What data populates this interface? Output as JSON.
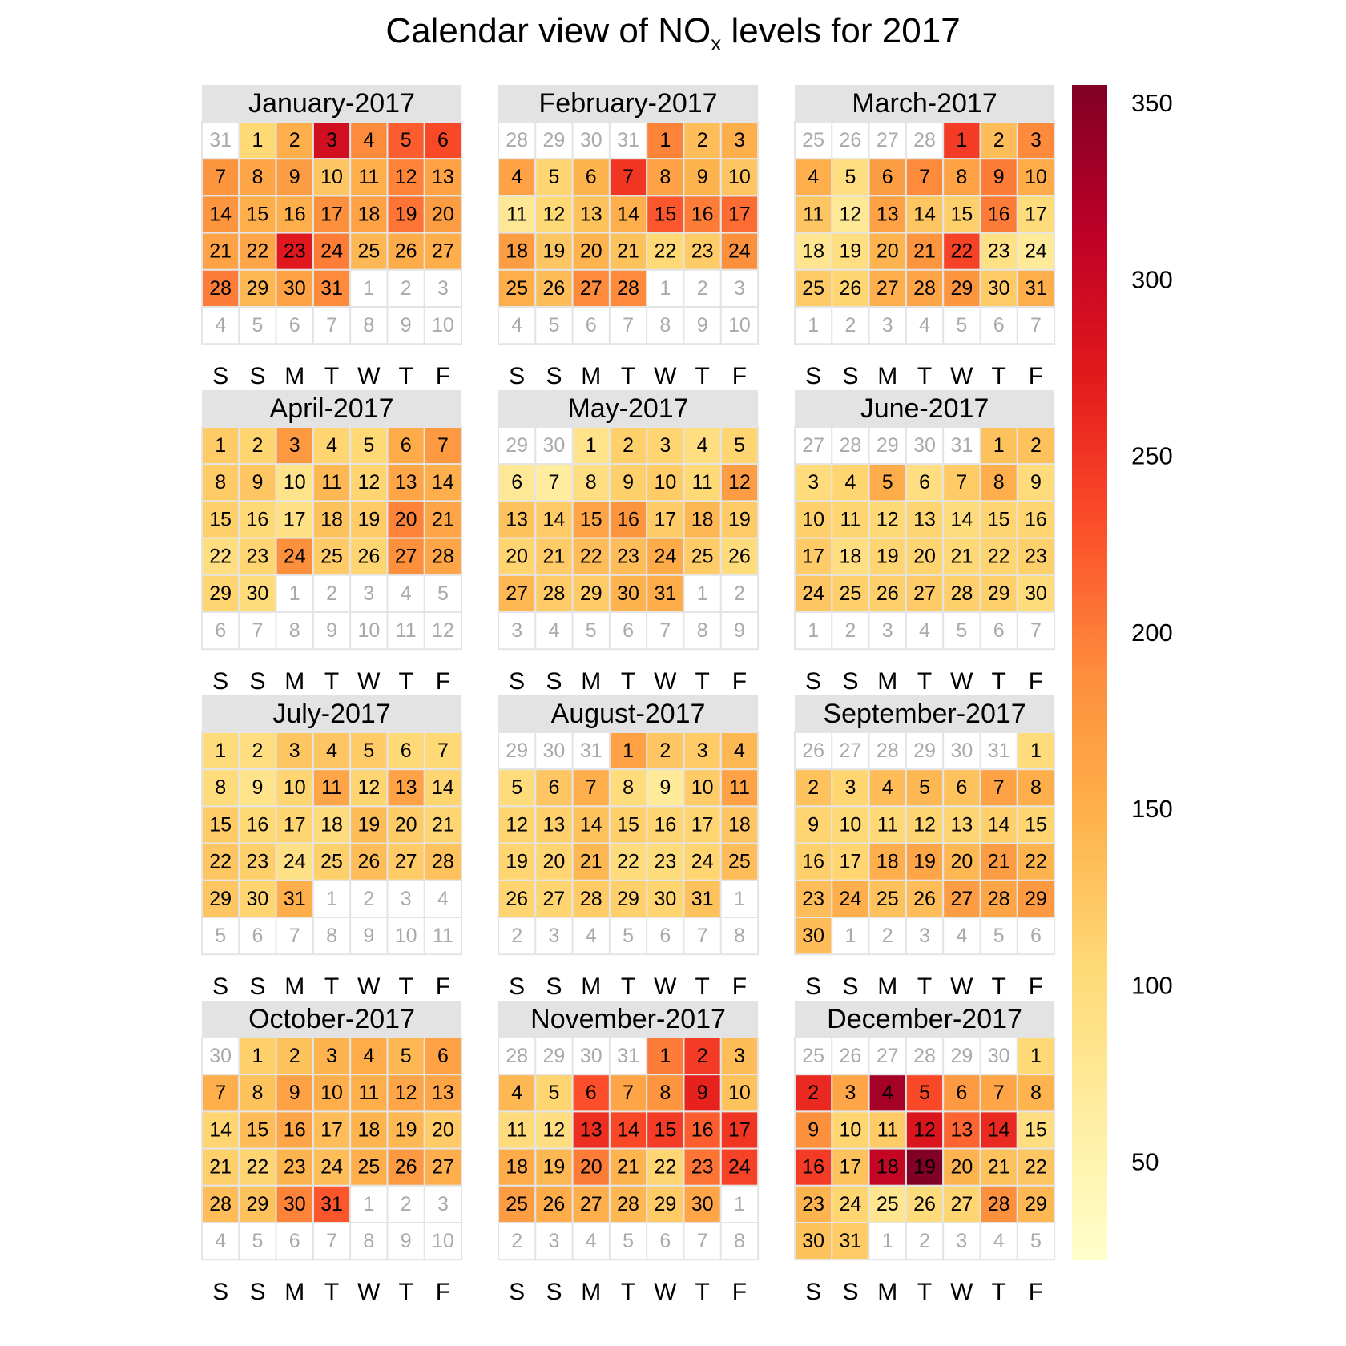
{
  "title": {
    "prefix": "Calendar view of NO",
    "subscript": "x",
    "suffix": " levels for  2017"
  },
  "weekday_labels": [
    "S",
    "S",
    "M",
    "T",
    "W",
    "T",
    "F"
  ],
  "colors": {
    "header_bg": "#e3e3e3",
    "empty_cell": "#ffffff",
    "cell_border": "#e4e4e4",
    "other_month_text": "#aaaaaa",
    "day_text": "#000000",
    "scale": [
      "#ffffcc",
      "#ffeda0",
      "#fed976",
      "#feb24c",
      "#fd8d3c",
      "#fc4e2a",
      "#e31a1c",
      "#bd0026",
      "#800026"
    ]
  },
  "chart_data": {
    "type": "heatmap",
    "layout": "calendar",
    "year": 2017,
    "week_start": "Saturday",
    "color_scale": {
      "min": 22,
      "max": 355,
      "ticks": [
        50,
        100,
        150,
        200,
        250,
        300,
        350
      ]
    },
    "months": [
      {
        "label": "January-2017",
        "month": 1,
        "days_in_month": 31,
        "prev_days_in_month": 31,
        "values": [
          105,
          150,
          290,
          190,
          220,
          235,
          180,
          160,
          170,
          125,
          150,
          195,
          165,
          180,
          150,
          150,
          185,
          165,
          205,
          170,
          165,
          160,
          275,
          200,
          140,
          155,
          150,
          200,
          140,
          165,
          190
        ]
      },
      {
        "label": "February-2017",
        "month": 2,
        "days_in_month": 28,
        "prev_days_in_month": 31,
        "values": [
          195,
          135,
          150,
          165,
          110,
          145,
          250,
          165,
          145,
          125,
          75,
          105,
          130,
          150,
          225,
          200,
          210,
          170,
          125,
          145,
          130,
          105,
          120,
          185,
          150,
          135,
          190,
          190
        ]
      },
      {
        "label": "March-2017",
        "month": 3,
        "days_in_month": 31,
        "prev_days_in_month": 28,
        "values": [
          245,
          135,
          190,
          150,
          95,
          170,
          190,
          165,
          200,
          155,
          125,
          75,
          165,
          125,
          115,
          200,
          100,
          80,
          95,
          145,
          180,
          240,
          90,
          70,
          120,
          110,
          150,
          160,
          180,
          120,
          150
        ]
      },
      {
        "label": "April-2017",
        "month": 4,
        "days_in_month": 30,
        "prev_days_in_month": 31,
        "values": [
          120,
          110,
          175,
          110,
          105,
          155,
          175,
          120,
          125,
          85,
          140,
          110,
          160,
          150,
          115,
          105,
          90,
          130,
          120,
          195,
          160,
          95,
          110,
          185,
          120,
          110,
          185,
          160,
          110,
          100
        ]
      },
      {
        "label": "May-2017",
        "month": 5,
        "days_in_month": 31,
        "prev_days_in_month": 30,
        "values": [
          85,
          115,
          110,
          95,
          110,
          75,
          65,
          95,
          115,
          120,
          105,
          170,
          130,
          120,
          160,
          180,
          120,
          140,
          120,
          110,
          120,
          135,
          135,
          155,
          120,
          100,
          140,
          120,
          120,
          145,
          155
        ]
      },
      {
        "label": "June-2017",
        "month": 6,
        "days_in_month": 30,
        "prev_days_in_month": 31,
        "values": [
          130,
          130,
          100,
          110,
          155,
          95,
          120,
          150,
          100,
          115,
          110,
          105,
          110,
          100,
          110,
          110,
          120,
          95,
          110,
          110,
          105,
          110,
          115,
          125,
          115,
          115,
          120,
          115,
          115,
          100
        ]
      },
      {
        "label": "July-2017",
        "month": 7,
        "days_in_month": 31,
        "prev_days_in_month": 30,
        "values": [
          100,
          95,
          125,
          125,
          120,
          105,
          105,
          100,
          85,
          110,
          160,
          110,
          165,
          110,
          120,
          105,
          110,
          100,
          135,
          120,
          110,
          125,
          115,
          90,
          115,
          135,
          120,
          130,
          125,
          110,
          150
        ]
      },
      {
        "label": "August-2017",
        "month": 8,
        "days_in_month": 31,
        "prev_days_in_month": 31,
        "values": [
          165,
          125,
          120,
          140,
          100,
          125,
          150,
          100,
          70,
          120,
          165,
          110,
          115,
          130,
          115,
          110,
          110,
          125,
          110,
          110,
          140,
          100,
          100,
          110,
          135,
          110,
          110,
          120,
          115,
          110,
          130
        ]
      },
      {
        "label": "September-2017",
        "month": 9,
        "days_in_month": 30,
        "prev_days_in_month": 31,
        "values": [
          100,
          130,
          110,
          135,
          140,
          130,
          165,
          150,
          110,
          105,
          105,
          110,
          110,
          115,
          110,
          115,
          110,
          150,
          160,
          140,
          170,
          145,
          135,
          150,
          130,
          135,
          170,
          160,
          175,
          135
        ]
      },
      {
        "label": "October-2017",
        "month": 10,
        "days_in_month": 31,
        "prev_days_in_month": 30,
        "values": [
          115,
          130,
          145,
          155,
          140,
          165,
          150,
          130,
          165,
          150,
          150,
          160,
          160,
          110,
          135,
          160,
          135,
          145,
          140,
          120,
          115,
          110,
          145,
          135,
          150,
          175,
          150,
          135,
          130,
          195,
          225
        ]
      },
      {
        "label": "November-2017",
        "month": 11,
        "days_in_month": 30,
        "prev_days_in_month": 31,
        "values": [
          200,
          245,
          135,
          140,
          110,
          230,
          160,
          180,
          265,
          130,
          100,
          95,
          255,
          235,
          245,
          220,
          250,
          155,
          140,
          200,
          145,
          110,
          205,
          240,
          170,
          155,
          150,
          140,
          120,
          160
        ]
      },
      {
        "label": "December-2017",
        "month": 12,
        "days_in_month": 31,
        "prev_days_in_month": 30,
        "values": [
          105,
          260,
          160,
          330,
          235,
          175,
          160,
          145,
          185,
          110,
          120,
          280,
          215,
          260,
          95,
          245,
          130,
          305,
          355,
          145,
          130,
          125,
          145,
          110,
          80,
          100,
          110,
          185,
          140,
          130,
          120
        ]
      }
    ]
  }
}
